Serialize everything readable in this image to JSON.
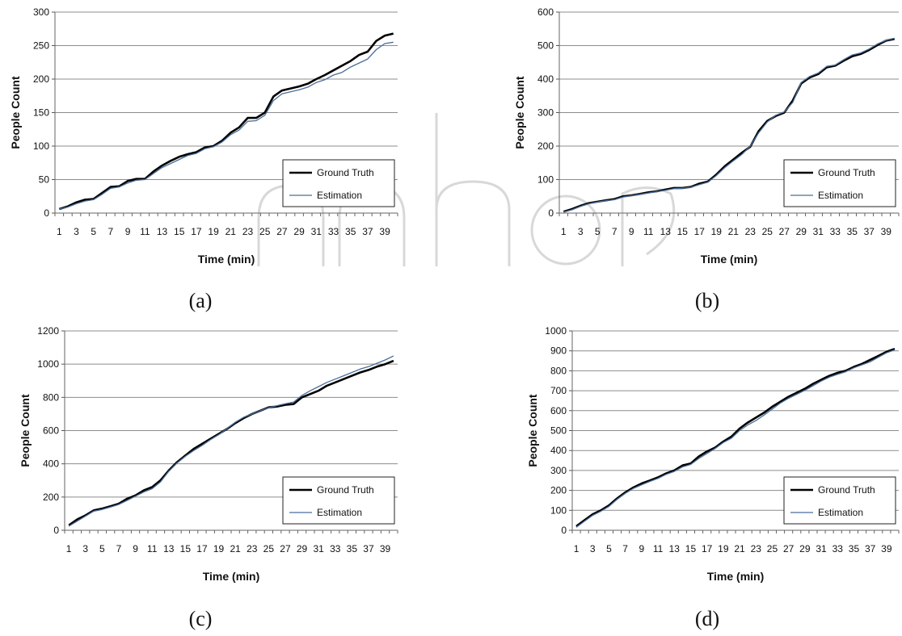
{
  "figure": {
    "captions": [
      "(a)",
      "(b)",
      "(c)",
      "(d)"
    ]
  },
  "colors": {
    "ground_truth": "#000000",
    "estimation": "#4a6e9a",
    "grid": "#8c8c8c",
    "watermark": "#d8d8d8"
  },
  "chart_data": [
    {
      "type": "line",
      "caption": "(a)",
      "xlabel": "Time (min)",
      "ylabel": "People Count",
      "x": [
        1,
        2,
        3,
        4,
        5,
        6,
        7,
        8,
        9,
        10,
        11,
        12,
        13,
        14,
        15,
        16,
        17,
        18,
        19,
        20,
        21,
        22,
        23,
        24,
        25,
        26,
        27,
        28,
        29,
        30,
        31,
        32,
        33,
        34,
        35,
        36,
        37,
        38,
        39,
        40
      ],
      "xticks": [
        1,
        3,
        5,
        7,
        9,
        11,
        13,
        15,
        17,
        19,
        21,
        23,
        25,
        27,
        29,
        31,
        33,
        35,
        37,
        39
      ],
      "ylim": [
        0,
        300
      ],
      "yticks": [
        0,
        50,
        100,
        150,
        200,
        250,
        300
      ],
      "grid": true,
      "legend": "lower-right",
      "series": [
        {
          "name": "Ground Truth",
          "values": [
            6,
            10,
            16,
            20,
            21,
            30,
            39,
            40,
            48,
            51,
            51,
            62,
            71,
            78,
            84,
            88,
            91,
            98,
            100,
            108,
            120,
            128,
            142,
            142,
            150,
            174,
            183,
            186,
            189,
            193,
            200,
            206,
            213,
            220,
            227,
            236,
            241,
            257,
            265,
            268
          ]
        },
        {
          "name": "Estimation",
          "values": [
            6,
            9,
            14,
            18,
            20,
            28,
            37,
            39,
            45,
            49,
            50,
            59,
            68,
            74,
            80,
            86,
            89,
            96,
            99,
            106,
            117,
            124,
            137,
            138,
            146,
            168,
            178,
            181,
            184,
            188,
            195,
            199,
            206,
            210,
            218,
            224,
            230,
            244,
            253,
            255
          ]
        }
      ]
    },
    {
      "type": "line",
      "caption": "(b)",
      "xlabel": "Time (min)",
      "ylabel": "People Count",
      "x": [
        1,
        2,
        3,
        4,
        5,
        6,
        7,
        8,
        9,
        10,
        11,
        12,
        13,
        14,
        15,
        16,
        17,
        18,
        19,
        20,
        21,
        22,
        23,
        24,
        25,
        26,
        27,
        28,
        29,
        30,
        31,
        32,
        33,
        34,
        35,
        36,
        37,
        38,
        39,
        40
      ],
      "xticks": [
        1,
        3,
        5,
        7,
        9,
        11,
        13,
        15,
        17,
        19,
        21,
        23,
        25,
        27,
        29,
        31,
        33,
        35,
        37,
        39
      ],
      "ylim": [
        0,
        600
      ],
      "yticks": [
        0,
        100,
        200,
        300,
        400,
        500,
        600
      ],
      "grid": true,
      "legend": "lower-right",
      "series": [
        {
          "name": "Ground Truth",
          "values": [
            4,
            12,
            22,
            30,
            34,
            38,
            42,
            50,
            53,
            57,
            62,
            65,
            70,
            75,
            75,
            78,
            88,
            94,
            115,
            140,
            160,
            180,
            198,
            245,
            275,
            290,
            300,
            336,
            387,
            405,
            415,
            435,
            440,
            455,
            468,
            475,
            487,
            502,
            515,
            520
          ]
        },
        {
          "name": "Estimation",
          "values": [
            3,
            10,
            20,
            28,
            33,
            37,
            40,
            48,
            52,
            56,
            60,
            64,
            68,
            73,
            74,
            77,
            85,
            92,
            112,
            136,
            156,
            175,
            200,
            240,
            272,
            292,
            302,
            330,
            390,
            408,
            418,
            438,
            442,
            458,
            472,
            478,
            490,
            505,
            516,
            522
          ]
        }
      ]
    },
    {
      "type": "line",
      "caption": "(c)",
      "xlabel": "Time (min)",
      "ylabel": "People Count",
      "x": [
        1,
        2,
        3,
        4,
        5,
        6,
        7,
        8,
        9,
        10,
        11,
        12,
        13,
        14,
        15,
        16,
        17,
        18,
        19,
        20,
        21,
        22,
        23,
        24,
        25,
        26,
        27,
        28,
        29,
        30,
        31,
        32,
        33,
        34,
        35,
        36,
        37,
        38,
        39,
        40
      ],
      "xticks": [
        1,
        3,
        5,
        7,
        9,
        11,
        13,
        15,
        17,
        19,
        21,
        23,
        25,
        27,
        29,
        31,
        33,
        35,
        37,
        39
      ],
      "ylim": [
        0,
        1200
      ],
      "yticks": [
        0,
        200,
        400,
        600,
        800,
        1000,
        1200
      ],
      "grid": true,
      "legend": "lower-right",
      "series": [
        {
          "name": "Ground Truth",
          "values": [
            30,
            65,
            90,
            120,
            130,
            145,
            160,
            190,
            210,
            240,
            260,
            300,
            360,
            410,
            450,
            490,
            520,
            550,
            580,
            610,
            645,
            675,
            700,
            720,
            740,
            745,
            755,
            760,
            800,
            820,
            840,
            870,
            890,
            910,
            930,
            950,
            965,
            985,
            1000,
            1020
          ]
        },
        {
          "name": "Estimation",
          "values": [
            25,
            55,
            85,
            115,
            125,
            140,
            155,
            180,
            205,
            230,
            250,
            290,
            355,
            405,
            445,
            480,
            510,
            545,
            575,
            612,
            650,
            680,
            700,
            720,
            738,
            750,
            762,
            772,
            812,
            840,
            865,
            890,
            910,
            930,
            950,
            970,
            985,
            1005,
            1025,
            1050
          ]
        }
      ]
    },
    {
      "type": "line",
      "caption": "(d)",
      "xlabel": "Time (min)",
      "ylabel": "People Count",
      "x": [
        1,
        2,
        3,
        4,
        5,
        6,
        7,
        8,
        9,
        10,
        11,
        12,
        13,
        14,
        15,
        16,
        17,
        18,
        19,
        20,
        21,
        22,
        23,
        24,
        25,
        26,
        27,
        28,
        29,
        30,
        31,
        32,
        33,
        34,
        35,
        36,
        37,
        38,
        39,
        40
      ],
      "xticks": [
        1,
        3,
        5,
        7,
        9,
        11,
        13,
        15,
        17,
        19,
        21,
        23,
        25,
        27,
        29,
        31,
        33,
        35,
        37,
        39
      ],
      "ylim": [
        0,
        1000
      ],
      "yticks": [
        0,
        100,
        200,
        300,
        400,
        500,
        600,
        700,
        800,
        900,
        1000
      ],
      "grid": true,
      "legend": "lower-right",
      "series": [
        {
          "name": "Ground Truth",
          "values": [
            20,
            50,
            80,
            100,
            125,
            160,
            190,
            215,
            235,
            250,
            265,
            285,
            300,
            325,
            335,
            370,
            395,
            415,
            445,
            470,
            510,
            540,
            565,
            590,
            620,
            645,
            670,
            690,
            710,
            735,
            755,
            775,
            790,
            800,
            820,
            835,
            855,
            875,
            895,
            910
          ]
        },
        {
          "name": "Estimation",
          "values": [
            15,
            45,
            75,
            95,
            120,
            155,
            185,
            210,
            228,
            245,
            260,
            280,
            295,
            318,
            330,
            360,
            385,
            410,
            440,
            462,
            500,
            528,
            550,
            578,
            608,
            638,
            662,
            682,
            702,
            725,
            748,
            768,
            782,
            795,
            815,
            830,
            845,
            868,
            890,
            905
          ]
        }
      ]
    }
  ]
}
